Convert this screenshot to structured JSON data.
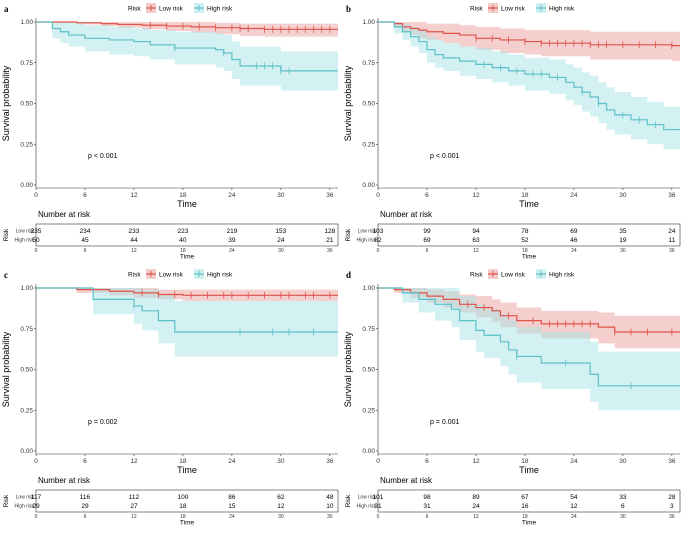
{
  "chart_data": [
    {
      "panel": "a",
      "type": "line",
      "subtype": "kaplan-meier",
      "xlabel": "Time",
      "ylabel": "Survival probability",
      "xlim": [
        0,
        37
      ],
      "ylim": [
        0,
        1
      ],
      "xticks": [
        0,
        6,
        12,
        18,
        24,
        30,
        36
      ],
      "yticks": [
        "0.00",
        "0.25",
        "0.50",
        "0.75",
        "1.00"
      ],
      "legend_title": "Risk",
      "pvalue": "p < 0.001",
      "series": [
        {
          "name": "Low risk",
          "color": "#e0534a",
          "ci_color": "#e9a09c",
          "x": [
            0,
            5,
            8,
            10,
            13,
            16,
            19,
            22,
            25,
            28,
            36
          ],
          "y": [
            1.0,
            0.995,
            0.99,
            0.985,
            0.98,
            0.975,
            0.97,
            0.965,
            0.96,
            0.955,
            0.955
          ],
          "lower": [
            1.0,
            0.985,
            0.975,
            0.965,
            0.955,
            0.945,
            0.935,
            0.925,
            0.915,
            0.91,
            0.91
          ],
          "upper": [
            1.0,
            1.0,
            1.0,
            1.0,
            1.0,
            1.0,
            1.0,
            0.995,
            0.99,
            0.99,
            0.99
          ],
          "censors": [
            14,
            16,
            18,
            20,
            22,
            24,
            25,
            26,
            28,
            29,
            30,
            31,
            32,
            33,
            34,
            35,
            36
          ]
        },
        {
          "name": "High risk",
          "color": "#5bc0c8",
          "ci_color": "#a8e3e6",
          "x": [
            0,
            2,
            3,
            4,
            6,
            9,
            12,
            14,
            17,
            22,
            23,
            24,
            25,
            30,
            36
          ],
          "y": [
            1.0,
            0.96,
            0.94,
            0.92,
            0.9,
            0.89,
            0.88,
            0.86,
            0.84,
            0.83,
            0.81,
            0.77,
            0.73,
            0.7,
            0.7
          ],
          "lower": [
            1.0,
            0.9,
            0.87,
            0.85,
            0.82,
            0.8,
            0.79,
            0.77,
            0.74,
            0.72,
            0.7,
            0.65,
            0.61,
            0.58,
            0.58
          ],
          "upper": [
            1.0,
            1.0,
            1.0,
            1.0,
            0.98,
            0.97,
            0.96,
            0.95,
            0.94,
            0.93,
            0.92,
            0.88,
            0.85,
            0.82,
            0.82
          ],
          "censors": [
            17,
            23,
            27,
            28,
            29,
            30,
            31
          ]
        }
      ],
      "risk_table": {
        "title": "Number at risk",
        "row_label": "Risk",
        "rows": [
          {
            "name": "Low risk",
            "values": [
              235,
              234,
              233,
              223,
              219,
              153,
              128
            ]
          },
          {
            "name": "High risk",
            "values": [
              50,
              45,
              44,
              40,
              39,
              24,
              21
            ]
          }
        ],
        "xlabel": "Time",
        "xticks": [
          0,
          6,
          12,
          18,
          24,
          30,
          36
        ]
      }
    },
    {
      "panel": "b",
      "type": "line",
      "subtype": "kaplan-meier",
      "xlabel": "Time",
      "ylabel": "Survival probability",
      "xlim": [
        0,
        37
      ],
      "ylim": [
        0,
        1
      ],
      "xticks": [
        0,
        6,
        12,
        18,
        24,
        30,
        36
      ],
      "yticks": [
        "0.00",
        "0.25",
        "0.50",
        "0.75",
        "1.00"
      ],
      "legend_title": "Risk",
      "pvalue": "p < 0.001",
      "series": [
        {
          "name": "Low risk",
          "color": "#e0534a",
          "ci_color": "#e9a09c",
          "x": [
            0,
            2,
            3,
            4,
            5,
            6,
            8,
            10,
            12,
            15,
            18,
            20,
            26,
            36
          ],
          "y": [
            1.0,
            0.99,
            0.97,
            0.96,
            0.95,
            0.94,
            0.93,
            0.92,
            0.9,
            0.89,
            0.88,
            0.87,
            0.86,
            0.855
          ],
          "lower": [
            1.0,
            0.97,
            0.94,
            0.92,
            0.9,
            0.89,
            0.87,
            0.85,
            0.83,
            0.81,
            0.8,
            0.79,
            0.77,
            0.76
          ],
          "upper": [
            1.0,
            1.0,
            1.0,
            1.0,
            1.0,
            0.99,
            0.99,
            0.98,
            0.97,
            0.96,
            0.95,
            0.95,
            0.94,
            0.94
          ],
          "censors": [
            12,
            14,
            16,
            18,
            20,
            21,
            22,
            23,
            24,
            25,
            26,
            27,
            28,
            30,
            32,
            34,
            36
          ]
        },
        {
          "name": "High risk",
          "color": "#5bc0c8",
          "ci_color": "#a8e3e6",
          "x": [
            0,
            2,
            3,
            4,
            5,
            6,
            7,
            8,
            10,
            12,
            14,
            16,
            18,
            21,
            23,
            24,
            25,
            26,
            27,
            28,
            29,
            31,
            33,
            35,
            36
          ],
          "y": [
            1.0,
            0.97,
            0.94,
            0.91,
            0.88,
            0.83,
            0.8,
            0.78,
            0.76,
            0.74,
            0.72,
            0.7,
            0.68,
            0.66,
            0.63,
            0.6,
            0.57,
            0.54,
            0.5,
            0.46,
            0.43,
            0.4,
            0.37,
            0.34,
            0.34
          ],
          "lower": [
            1.0,
            0.93,
            0.89,
            0.85,
            0.81,
            0.75,
            0.72,
            0.7,
            0.67,
            0.65,
            0.63,
            0.61,
            0.58,
            0.56,
            0.52,
            0.49,
            0.45,
            0.42,
            0.38,
            0.34,
            0.31,
            0.28,
            0.25,
            0.22,
            0.22
          ],
          "upper": [
            1.0,
            1.0,
            0.99,
            0.97,
            0.95,
            0.91,
            0.89,
            0.87,
            0.85,
            0.84,
            0.82,
            0.8,
            0.78,
            0.77,
            0.74,
            0.72,
            0.69,
            0.67,
            0.63,
            0.6,
            0.57,
            0.54,
            0.51,
            0.48,
            0.48
          ],
          "censors": [
            13,
            15,
            17,
            19,
            20,
            22,
            25,
            27,
            30,
            32,
            34
          ]
        }
      ],
      "risk_table": {
        "title": "Number at risk",
        "row_label": "Risk",
        "rows": [
          {
            "name": "Low risk",
            "values": [
              103,
              99,
              94,
              78,
              69,
              35,
              24
            ]
          },
          {
            "name": "High risk",
            "values": [
              82,
              69,
              63,
              52,
              46,
              19,
              11
            ]
          }
        ],
        "xlabel": "Time",
        "xticks": [
          0,
          6,
          12,
          18,
          24,
          30,
          36
        ]
      }
    },
    {
      "panel": "c",
      "type": "line",
      "subtype": "kaplan-meier",
      "xlabel": "Time",
      "ylabel": "Survival probability",
      "xlim": [
        0,
        37
      ],
      "ylim": [
        0,
        1
      ],
      "xticks": [
        0,
        6,
        12,
        18,
        24,
        30,
        36
      ],
      "yticks": [
        "0.00",
        "0.25",
        "0.50",
        "0.75",
        "1.00"
      ],
      "legend_title": "Risk",
      "pvalue": "p = 0.002",
      "series": [
        {
          "name": "Low risk",
          "color": "#e0534a",
          "ci_color": "#e9a09c",
          "x": [
            0,
            5,
            9,
            12,
            15,
            18,
            36
          ],
          "y": [
            1.0,
            0.99,
            0.98,
            0.97,
            0.96,
            0.955,
            0.955
          ],
          "lower": [
            1.0,
            0.97,
            0.955,
            0.94,
            0.93,
            0.92,
            0.92
          ],
          "upper": [
            1.0,
            1.0,
            1.0,
            1.0,
            0.99,
            0.99,
            0.99
          ],
          "censors": [
            13,
            15,
            17,
            19,
            21,
            23,
            24,
            26,
            28,
            30,
            31,
            33,
            34,
            36
          ]
        },
        {
          "name": "High risk",
          "color": "#5bc0c8",
          "ci_color": "#a8e3e6",
          "x": [
            0,
            7,
            12,
            13,
            15,
            17,
            36
          ],
          "y": [
            1.0,
            0.93,
            0.89,
            0.86,
            0.8,
            0.73,
            0.73
          ],
          "lower": [
            1.0,
            0.84,
            0.78,
            0.74,
            0.66,
            0.58,
            0.58
          ],
          "upper": [
            1.0,
            1.0,
            1.0,
            0.99,
            0.96,
            0.92,
            0.92
          ],
          "censors": [
            12,
            25,
            29,
            31,
            34
          ]
        }
      ],
      "risk_table": {
        "title": "Number at risk",
        "row_label": "Risk",
        "rows": [
          {
            "name": "Low risk",
            "values": [
              117,
              116,
              112,
              100,
              86,
              62,
              48
            ]
          },
          {
            "name": "High risk",
            "values": [
              29,
              29,
              27,
              18,
              15,
              12,
              10
            ]
          }
        ],
        "xlabel": "Time",
        "xticks": [
          0,
          6,
          12,
          18,
          24,
          30,
          36
        ]
      }
    },
    {
      "panel": "d",
      "type": "line",
      "subtype": "kaplan-meier",
      "xlabel": "Time",
      "ylabel": "Survival probability",
      "xlim": [
        0,
        37
      ],
      "ylim": [
        0,
        1
      ],
      "xticks": [
        0,
        6,
        12,
        18,
        24,
        30,
        36
      ],
      "yticks": [
        "0.00",
        "0.25",
        "0.50",
        "0.75",
        "1.00"
      ],
      "legend_title": "Risk",
      "pvalue": "p = 0.001",
      "series": [
        {
          "name": "Low risk",
          "color": "#e0534a",
          "ci_color": "#e9a09c",
          "x": [
            0,
            2,
            4,
            6,
            8,
            10,
            12,
            14,
            15,
            17,
            20,
            27,
            29,
            36
          ],
          "y": [
            1.0,
            0.99,
            0.97,
            0.95,
            0.93,
            0.9,
            0.88,
            0.86,
            0.83,
            0.8,
            0.78,
            0.76,
            0.73,
            0.73
          ],
          "lower": [
            1.0,
            0.97,
            0.94,
            0.91,
            0.88,
            0.85,
            0.82,
            0.79,
            0.76,
            0.72,
            0.69,
            0.66,
            0.63,
            0.63
          ],
          "upper": [
            1.0,
            1.0,
            1.0,
            0.99,
            0.98,
            0.96,
            0.95,
            0.93,
            0.91,
            0.88,
            0.86,
            0.85,
            0.83,
            0.83
          ],
          "censors": [
            11,
            13,
            16,
            19,
            21,
            22,
            23,
            24,
            25,
            26,
            29,
            31,
            33,
            36
          ]
        },
        {
          "name": "High risk",
          "color": "#5bc0c8",
          "ci_color": "#a8e3e6",
          "x": [
            0,
            3,
            5,
            7,
            9,
            10,
            12,
            13,
            15,
            16,
            17,
            20,
            26,
            27,
            36
          ],
          "y": [
            1.0,
            0.97,
            0.93,
            0.9,
            0.87,
            0.8,
            0.74,
            0.71,
            0.67,
            0.62,
            0.58,
            0.54,
            0.47,
            0.4,
            0.4
          ],
          "lower": [
            1.0,
            0.91,
            0.85,
            0.8,
            0.76,
            0.68,
            0.61,
            0.57,
            0.52,
            0.47,
            0.42,
            0.38,
            0.3,
            0.25,
            0.25
          ],
          "upper": [
            1.0,
            1.0,
            1.0,
            1.0,
            1.0,
            0.95,
            0.9,
            0.87,
            0.84,
            0.8,
            0.76,
            0.73,
            0.67,
            0.61,
            0.61
          ],
          "censors": [
            17,
            23,
            31
          ]
        }
      ],
      "risk_table": {
        "title": "Number at risk",
        "row_label": "Risk",
        "rows": [
          {
            "name": "Low risk",
            "values": [
              101,
              98,
              89,
              67,
              54,
              33,
              28
            ]
          },
          {
            "name": "High risk",
            "values": [
              31,
              31,
              24,
              16,
              12,
              6,
              3
            ]
          }
        ],
        "xlabel": "Time",
        "xticks": [
          0,
          6,
          12,
          18,
          24,
          30,
          36
        ]
      }
    }
  ]
}
